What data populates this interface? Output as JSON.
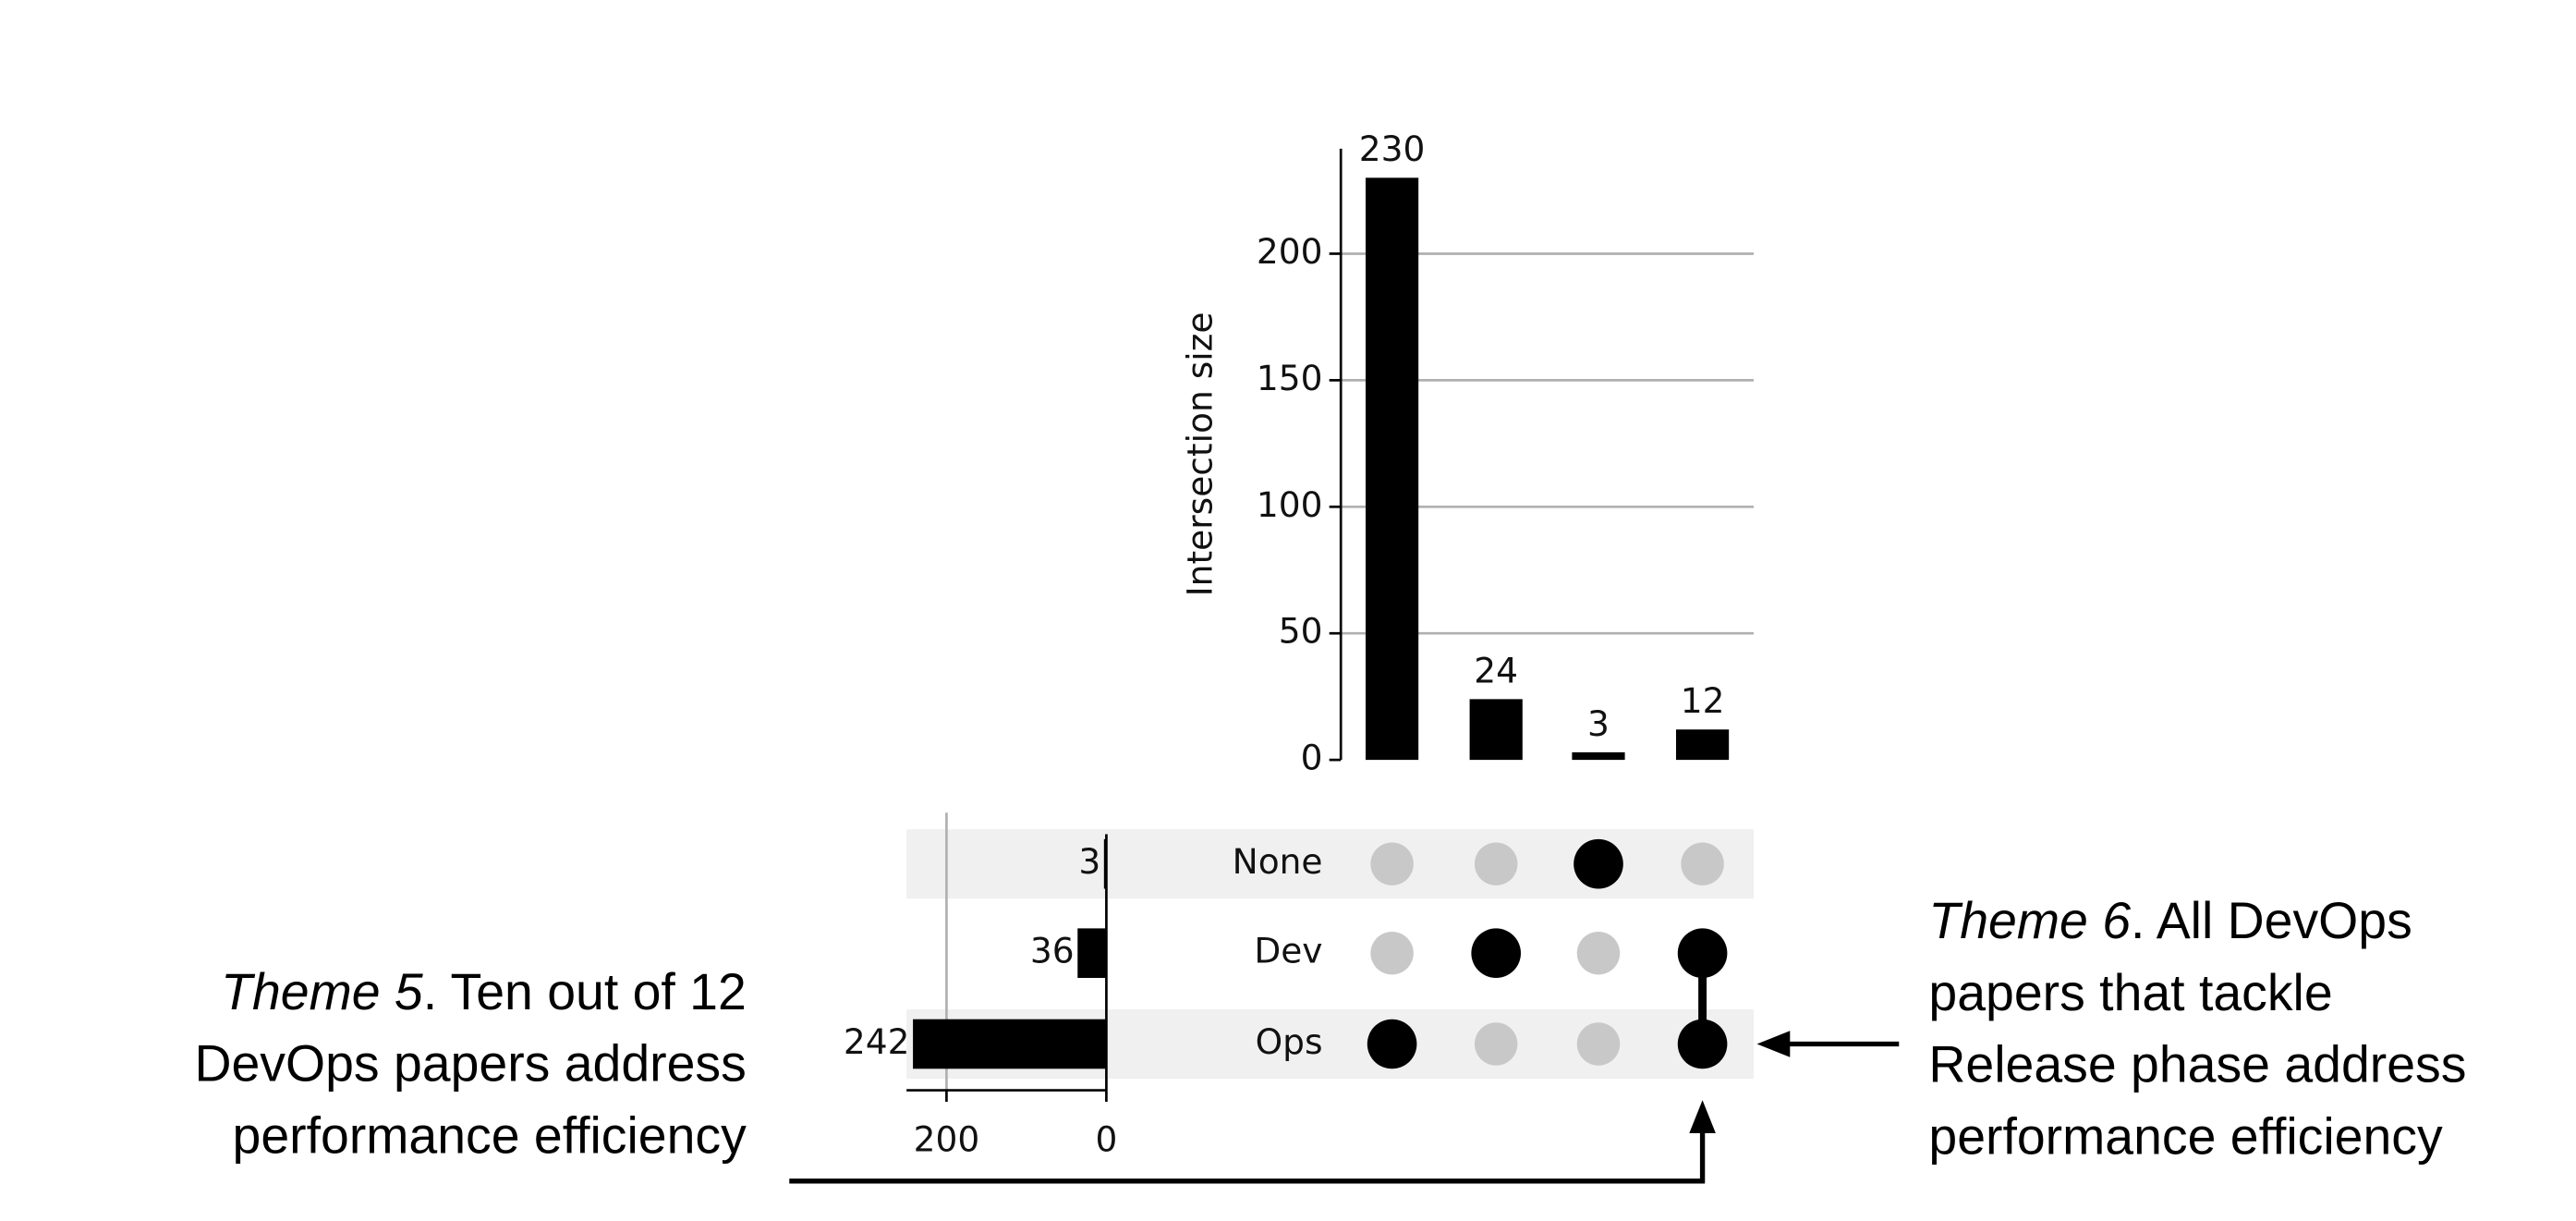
{
  "chart_data": {
    "type": "upset",
    "ylabel": "Intersection size",
    "values": [
      230,
      24,
      3,
      12
    ],
    "ylim": [
      0,
      241.5
    ],
    "yticks": [
      0,
      50,
      100,
      150,
      200
    ],
    "grid": true,
    "color": "#000000",
    "inactive_color": "#c8c8c8",
    "sets": [
      "None",
      "Dev",
      "Ops"
    ],
    "set_sizes": [
      3,
      36,
      242
    ],
    "set_xlim": [
      0,
      250
    ],
    "set_xticks": [
      0,
      200
    ],
    "membership": [
      [
        false,
        false,
        true
      ],
      [
        false,
        true,
        false
      ],
      [
        true,
        false,
        false
      ],
      [
        false,
        true,
        true
      ]
    ],
    "annotations": [
      {
        "label": "Theme 5",
        "lines": [
          ". Ten out of 12",
          "DevOps papers address",
          "performance efficiency"
        ]
      },
      {
        "label": "Theme 6",
        "lines": [
          ".  All DevOps",
          "papers that tackle",
          "Release phase address",
          "performance efficiency"
        ]
      }
    ]
  }
}
